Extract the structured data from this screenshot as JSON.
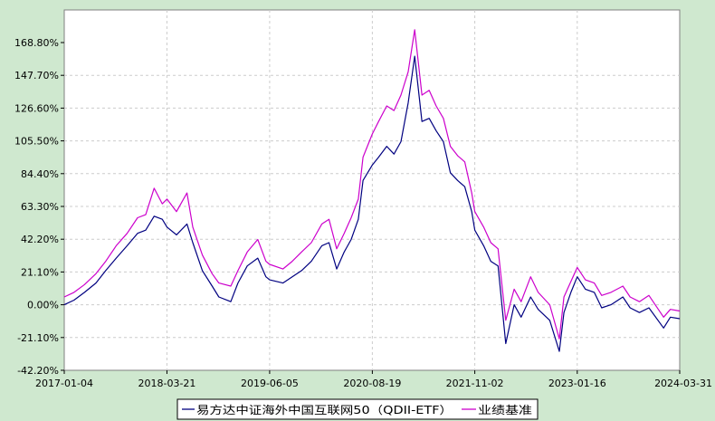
{
  "chart_data": {
    "type": "line",
    "title": "",
    "xlabel": "",
    "ylabel": "",
    "y_unit": "%",
    "ylim": [
      -42.2,
      185
    ],
    "y_ticks": [
      168.8,
      147.7,
      126.6,
      105.5,
      84.4,
      63.3,
      42.2,
      21.1,
      0.0,
      -21.1,
      -42.2
    ],
    "y_tick_labels": [
      "168.80%",
      "147.70%",
      "126.60%",
      "105.50%",
      "84.40%",
      "63.30%",
      "42.20%",
      "21.10%",
      "0.00%",
      "-21.10%",
      "-42.20%"
    ],
    "x_range": [
      "2017-01-04",
      "2024-03-31"
    ],
    "x_ticks": [
      "2017-01-04",
      "2018-03-21",
      "2019-06-05",
      "2020-08-19",
      "2021-11-02",
      "2023-01-16",
      "2024-03-31"
    ],
    "grid": true,
    "legend_position": "bottom-center",
    "series": [
      {
        "name": "易方达中证海外中国互联网50（QDII-ETF）",
        "color": "#000080",
        "points": [
          [
            "2017-01-04",
            0
          ],
          [
            "2017-02-15",
            3
          ],
          [
            "2017-04-01",
            8
          ],
          [
            "2017-05-20",
            14
          ],
          [
            "2017-07-01",
            22
          ],
          [
            "2017-08-15",
            30
          ],
          [
            "2017-10-01",
            38
          ],
          [
            "2017-11-15",
            46
          ],
          [
            "2017-12-20",
            48
          ],
          [
            "2018-01-25",
            57
          ],
          [
            "2018-03-01",
            55
          ],
          [
            "2018-03-21",
            50
          ],
          [
            "2018-05-01",
            45
          ],
          [
            "2018-06-15",
            52
          ],
          [
            "2018-07-10",
            40
          ],
          [
            "2018-08-20",
            22
          ],
          [
            "2018-10-01",
            12
          ],
          [
            "2018-10-30",
            5
          ],
          [
            "2018-12-20",
            2
          ],
          [
            "2019-01-20",
            14
          ],
          [
            "2019-03-01",
            25
          ],
          [
            "2019-04-15",
            30
          ],
          [
            "2019-05-20",
            18
          ],
          [
            "2019-06-05",
            16
          ],
          [
            "2019-08-01",
            14
          ],
          [
            "2019-09-10",
            18
          ],
          [
            "2019-10-20",
            22
          ],
          [
            "2019-12-01",
            28
          ],
          [
            "2020-01-15",
            38
          ],
          [
            "2020-02-15",
            40
          ],
          [
            "2020-03-19",
            23
          ],
          [
            "2020-04-20",
            34
          ],
          [
            "2020-05-20",
            42
          ],
          [
            "2020-06-20",
            55
          ],
          [
            "2020-07-10",
            80
          ],
          [
            "2020-08-19",
            90
          ],
          [
            "2020-09-15",
            95
          ],
          [
            "2020-10-20",
            102
          ],
          [
            "2020-11-20",
            97
          ],
          [
            "2020-12-20",
            105
          ],
          [
            "2021-01-20",
            130
          ],
          [
            "2021-02-17",
            160
          ],
          [
            "2021-03-20",
            118
          ],
          [
            "2021-04-20",
            120
          ],
          [
            "2021-05-20",
            112
          ],
          [
            "2021-06-20",
            105
          ],
          [
            "2021-07-20",
            85
          ],
          [
            "2021-08-20",
            80
          ],
          [
            "2021-09-20",
            76
          ],
          [
            "2021-10-20",
            60
          ],
          [
            "2021-11-02",
            48
          ],
          [
            "2021-12-10",
            38
          ],
          [
            "2022-01-10",
            28
          ],
          [
            "2022-02-10",
            25
          ],
          [
            "2022-03-15",
            -25
          ],
          [
            "2022-04-20",
            0
          ],
          [
            "2022-05-20",
            -8
          ],
          [
            "2022-06-30",
            5
          ],
          [
            "2022-08-01",
            -3
          ],
          [
            "2022-09-20",
            -10
          ],
          [
            "2022-10-31",
            -30
          ],
          [
            "2022-11-20",
            -5
          ],
          [
            "2022-12-20",
            8
          ],
          [
            "2023-01-16",
            18
          ],
          [
            "2023-02-20",
            10
          ],
          [
            "2023-03-30",
            8
          ],
          [
            "2023-05-01",
            -2
          ],
          [
            "2023-06-10",
            0
          ],
          [
            "2023-07-31",
            5
          ],
          [
            "2023-08-31",
            -2
          ],
          [
            "2023-10-10",
            -5
          ],
          [
            "2023-11-20",
            -2
          ],
          [
            "2024-01-22",
            -15
          ],
          [
            "2024-02-20",
            -8
          ],
          [
            "2024-03-31",
            -9
          ]
        ]
      },
      {
        "name": "业绩基准",
        "color": "#cc00cc",
        "points": [
          [
            "2017-01-04",
            5
          ],
          [
            "2017-02-15",
            8
          ],
          [
            "2017-04-01",
            13
          ],
          [
            "2017-05-20",
            20
          ],
          [
            "2017-07-01",
            28
          ],
          [
            "2017-08-15",
            38
          ],
          [
            "2017-10-01",
            46
          ],
          [
            "2017-11-15",
            56
          ],
          [
            "2017-12-20",
            58
          ],
          [
            "2018-01-25",
            75
          ],
          [
            "2018-03-01",
            65
          ],
          [
            "2018-03-21",
            68
          ],
          [
            "2018-05-01",
            60
          ],
          [
            "2018-06-15",
            72
          ],
          [
            "2018-07-10",
            50
          ],
          [
            "2018-08-20",
            32
          ],
          [
            "2018-10-01",
            20
          ],
          [
            "2018-10-30",
            14
          ],
          [
            "2018-12-20",
            12
          ],
          [
            "2019-01-20",
            22
          ],
          [
            "2019-03-01",
            34
          ],
          [
            "2019-04-15",
            42
          ],
          [
            "2019-05-20",
            28
          ],
          [
            "2019-06-05",
            26
          ],
          [
            "2019-08-01",
            23
          ],
          [
            "2019-09-10",
            28
          ],
          [
            "2019-10-20",
            34
          ],
          [
            "2019-12-01",
            40
          ],
          [
            "2020-01-15",
            52
          ],
          [
            "2020-02-15",
            55
          ],
          [
            "2020-03-19",
            36
          ],
          [
            "2020-04-20",
            46
          ],
          [
            "2020-05-20",
            56
          ],
          [
            "2020-06-20",
            68
          ],
          [
            "2020-07-10",
            95
          ],
          [
            "2020-08-19",
            110
          ],
          [
            "2020-09-15",
            118
          ],
          [
            "2020-10-20",
            128
          ],
          [
            "2020-11-20",
            125
          ],
          [
            "2020-12-20",
            135
          ],
          [
            "2021-01-20",
            150
          ],
          [
            "2021-02-17",
            177
          ],
          [
            "2021-03-20",
            135
          ],
          [
            "2021-04-20",
            138
          ],
          [
            "2021-05-20",
            128
          ],
          [
            "2021-06-20",
            120
          ],
          [
            "2021-07-20",
            102
          ],
          [
            "2021-08-20",
            96
          ],
          [
            "2021-09-20",
            92
          ],
          [
            "2021-10-20",
            72
          ],
          [
            "2021-11-02",
            60
          ],
          [
            "2021-12-10",
            50
          ],
          [
            "2022-01-10",
            40
          ],
          [
            "2022-02-10",
            36
          ],
          [
            "2022-03-15",
            -10
          ],
          [
            "2022-04-20",
            10
          ],
          [
            "2022-05-20",
            2
          ],
          [
            "2022-06-30",
            18
          ],
          [
            "2022-08-01",
            8
          ],
          [
            "2022-09-20",
            0
          ],
          [
            "2022-10-31",
            -22
          ],
          [
            "2022-11-20",
            5
          ],
          [
            "2022-12-20",
            15
          ],
          [
            "2023-01-16",
            24
          ],
          [
            "2023-02-20",
            16
          ],
          [
            "2023-03-30",
            14
          ],
          [
            "2023-05-01",
            6
          ],
          [
            "2023-06-10",
            8
          ],
          [
            "2023-07-31",
            12
          ],
          [
            "2023-08-31",
            5
          ],
          [
            "2023-10-10",
            2
          ],
          [
            "2023-11-20",
            6
          ],
          [
            "2024-01-22",
            -8
          ],
          [
            "2024-02-20",
            -3
          ],
          [
            "2024-03-31",
            -4
          ]
        ]
      }
    ]
  }
}
